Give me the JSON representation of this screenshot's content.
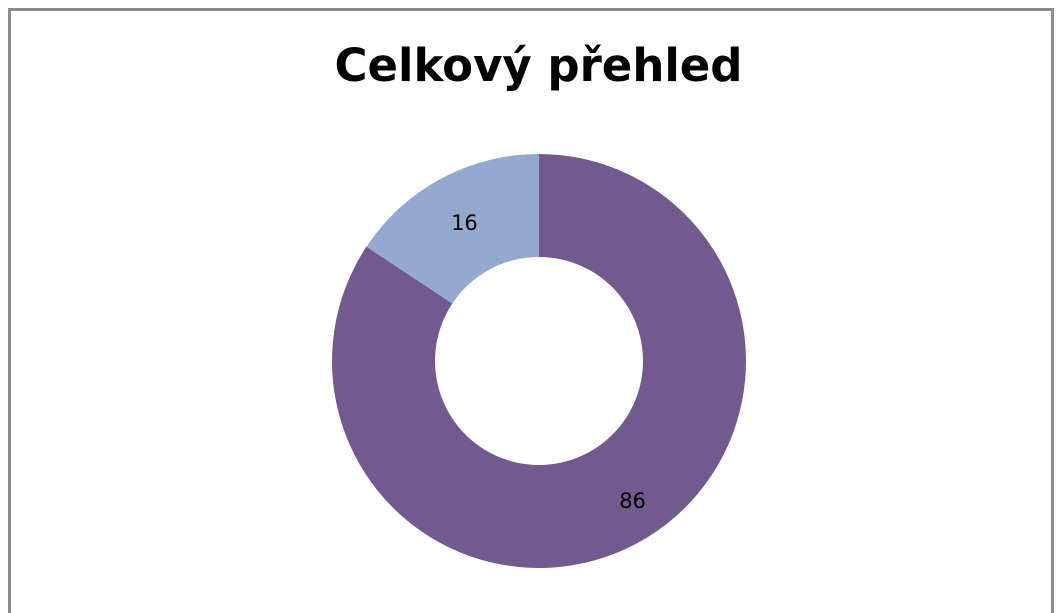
{
  "chart_data": {
    "type": "pie",
    "subtype": "donut",
    "title": "Celkový přehled",
    "slices": [
      {
        "label": "86",
        "value": 86,
        "color": "#725A8F"
      },
      {
        "label": "16",
        "value": 16,
        "color": "#93A9CF"
      }
    ],
    "legend": "none"
  }
}
